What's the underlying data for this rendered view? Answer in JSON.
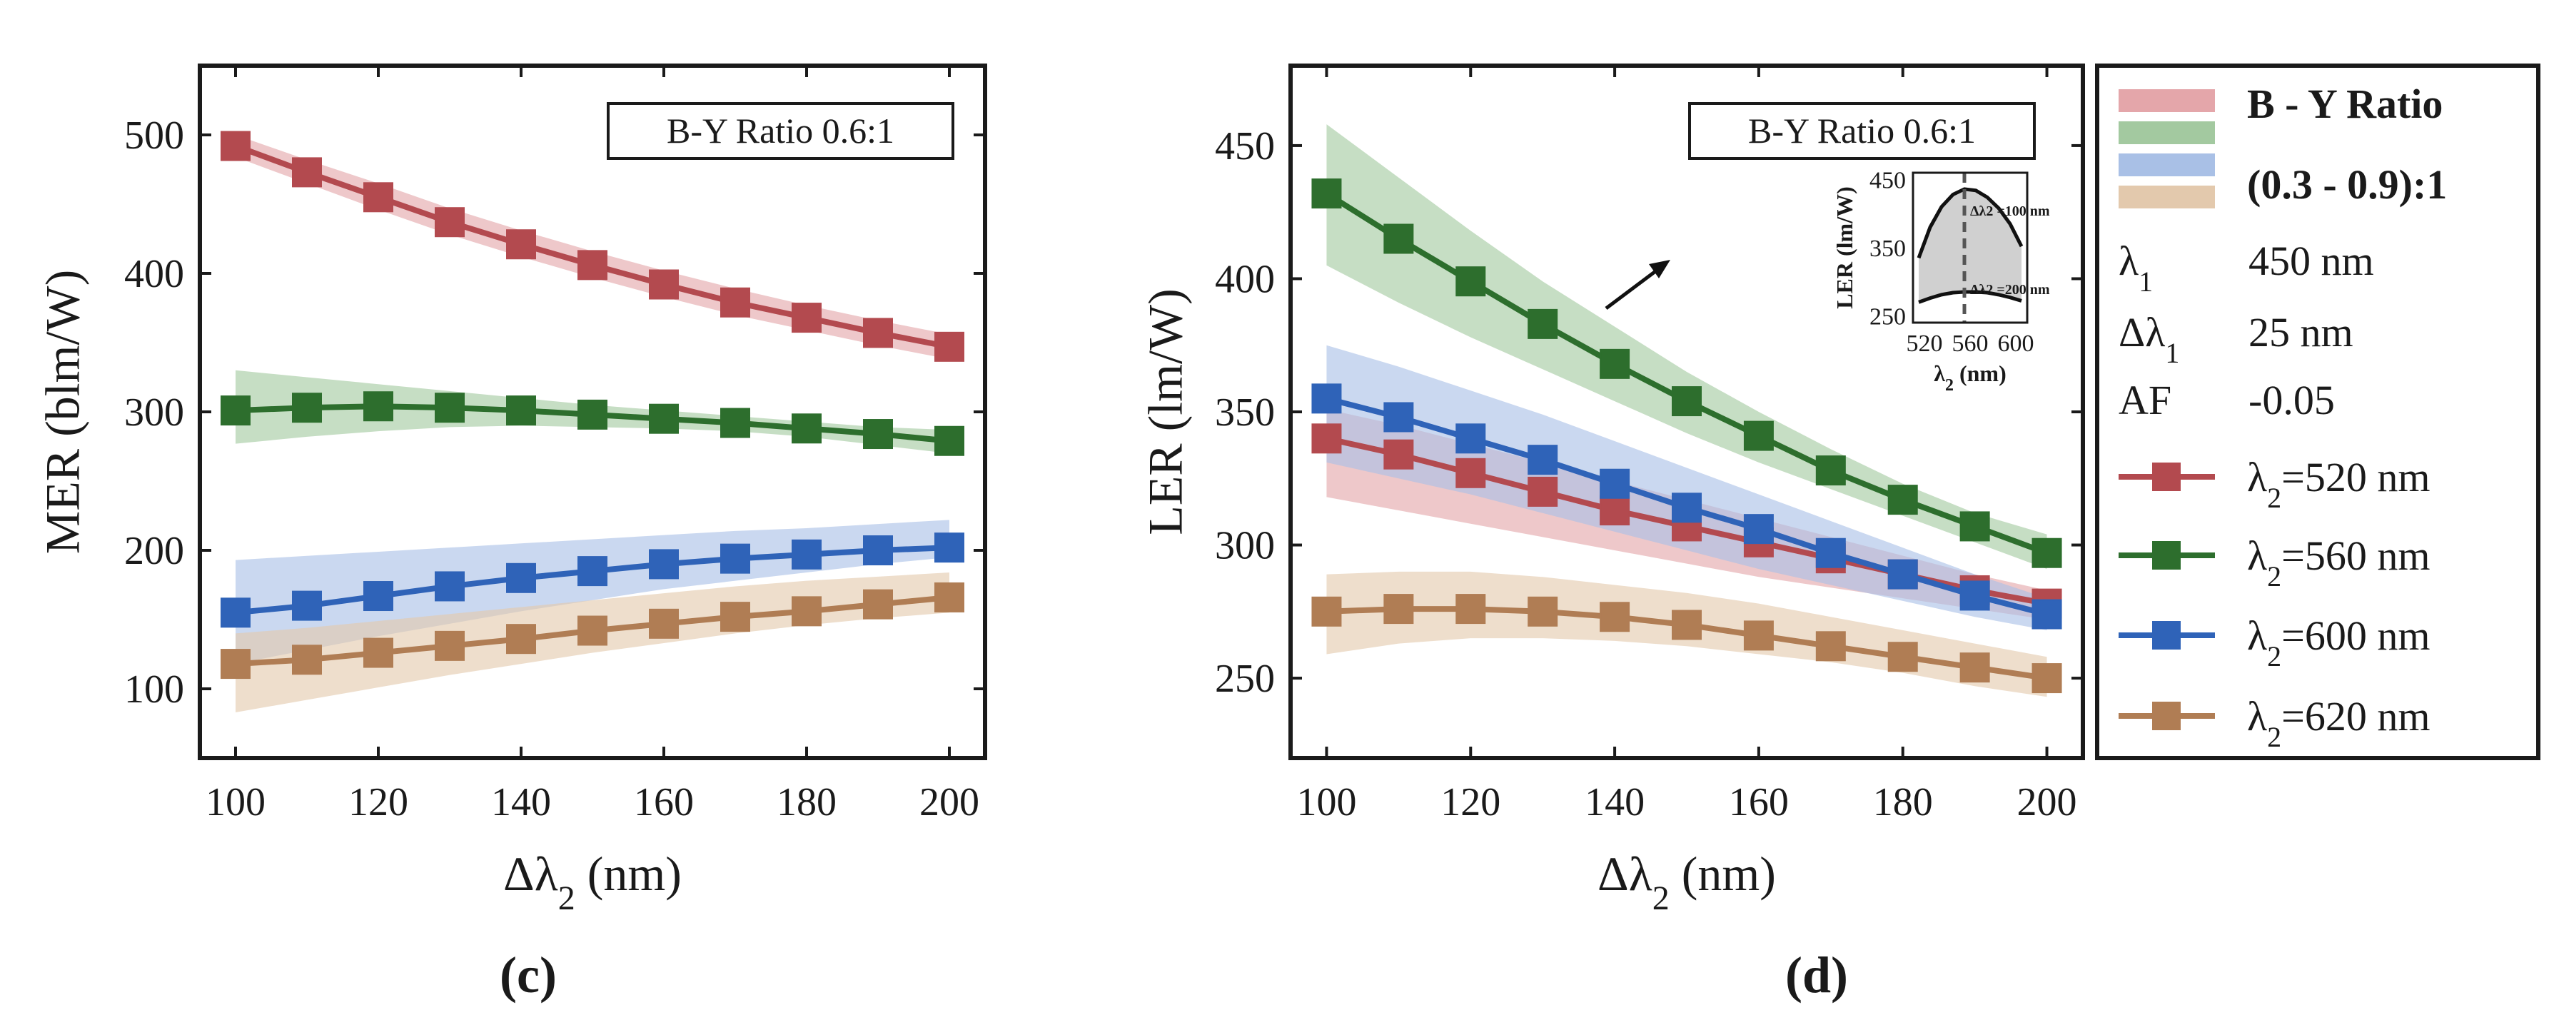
{
  "chart_data": [
    {
      "type": "line",
      "panel_label": "(c)",
      "ylabel": "MER (blm/W)",
      "xlabel_main": "Δλ",
      "xlabel_sub": "2",
      "xlabel_unit": "(nm)",
      "xlim": [
        95,
        205
      ],
      "ylim": [
        50,
        550
      ],
      "xticks": [
        100,
        120,
        140,
        160,
        180,
        200
      ],
      "yticks": [
        100,
        200,
        300,
        400,
        500
      ],
      "annotation": "B-Y Ratio  0.6:1",
      "x": [
        100,
        110,
        120,
        130,
        140,
        150,
        160,
        170,
        180,
        190,
        200
      ],
      "series": [
        {
          "name": "λ2=520 nm",
          "color": "#b34a4f",
          "band_color": "#e4a6aa",
          "values": [
            492,
            473,
            455,
            437,
            421,
            406,
            392,
            379,
            368,
            357,
            347
          ],
          "band_upper": [
            500,
            482,
            465,
            447,
            431,
            416,
            402,
            389,
            377,
            366,
            356
          ],
          "band_lower": [
            484,
            465,
            446,
            428,
            412,
            397,
            383,
            370,
            359,
            348,
            338
          ]
        },
        {
          "name": "λ2=560 nm",
          "color": "#2d6e2d",
          "band_color": "#a3c9a0",
          "values": [
            301,
            303,
            304,
            303,
            301,
            298,
            295,
            292,
            288,
            284,
            279
          ],
          "band_upper": [
            330,
            325,
            320,
            315,
            310,
            305,
            301,
            297,
            293,
            289,
            287
          ],
          "band_lower": [
            277,
            282,
            286,
            289,
            290,
            289,
            288,
            286,
            282,
            276,
            270
          ]
        },
        {
          "name": "λ2=600 nm",
          "color": "#2f63b8",
          "band_color": "#a9c0e6",
          "values": [
            155,
            160,
            167,
            174,
            180,
            185,
            190,
            194,
            197,
            200,
            202
          ],
          "band_upper": [
            193,
            196,
            199,
            202,
            205,
            208,
            211,
            214,
            216,
            219,
            222
          ],
          "band_lower": [
            118,
            128,
            138,
            147,
            156,
            164,
            172,
            178,
            184,
            190,
            195
          ]
        },
        {
          "name": "λ2=620 nm",
          "color": "#b07d54",
          "band_color": "#e3c9ad",
          "values": [
            118,
            121,
            126,
            131,
            136,
            142,
            147,
            152,
            156,
            161,
            166
          ],
          "band_upper": [
            140,
            144,
            149,
            154,
            159,
            164,
            169,
            174,
            178,
            181,
            184
          ],
          "band_lower": [
            83,
            92,
            101,
            110,
            118,
            126,
            133,
            140,
            146,
            151,
            155
          ]
        }
      ]
    },
    {
      "type": "line",
      "panel_label": "(d)",
      "ylabel": "LER (lm/W)",
      "xlabel_main": "Δλ",
      "xlabel_sub": "2",
      "xlabel_unit": "(nm)",
      "xlim": [
        95,
        205
      ],
      "ylim": [
        220,
        480
      ],
      "xticks": [
        100,
        120,
        140,
        160,
        180,
        200
      ],
      "yticks": [
        250,
        300,
        350,
        400,
        450
      ],
      "annotation": "B-Y Ratio  0.6:1",
      "x": [
        100,
        110,
        120,
        130,
        140,
        150,
        160,
        170,
        180,
        190,
        200
      ],
      "series": [
        {
          "name": "λ2=520 nm",
          "color": "#b34a4f",
          "band_color": "#e4a6aa",
          "values": [
            340,
            334,
            327,
            320,
            313,
            307,
            301,
            295,
            289,
            283,
            278
          ],
          "band_upper": [
            351,
            345,
            338,
            331,
            324,
            317,
            310,
            303,
            296,
            289,
            283
          ],
          "band_lower": [
            318,
            313,
            308,
            303,
            298,
            293,
            288,
            284,
            280,
            276,
            272
          ]
        },
        {
          "name": "λ2=560 nm",
          "color": "#2d6e2d",
          "band_color": "#a3c9a0",
          "values": [
            432,
            415,
            399,
            383,
            368,
            354,
            341,
            328,
            317,
            307,
            297
          ],
          "band_upper": [
            458,
            438,
            418,
            399,
            382,
            365,
            350,
            336,
            323,
            312,
            304
          ],
          "band_lower": [
            405,
            391,
            378,
            366,
            354,
            342,
            331,
            321,
            311,
            301,
            291
          ]
        },
        {
          "name": "λ2=600 nm",
          "color": "#2f63b8",
          "band_color": "#a9c0e6",
          "values": [
            355,
            348,
            340,
            332,
            323,
            314,
            306,
            297,
            289,
            281,
            274
          ],
          "band_upper": [
            375,
            367,
            358,
            349,
            339,
            329,
            319,
            309,
            299,
            289,
            280
          ],
          "band_lower": [
            331,
            325,
            319,
            312,
            305,
            298,
            291,
            285,
            279,
            273,
            268
          ]
        },
        {
          "name": "λ2=620 nm",
          "color": "#b07d54",
          "band_color": "#e3c9ad",
          "values": [
            275,
            276,
            276,
            275,
            273,
            270,
            266,
            262,
            258,
            254,
            250
          ],
          "band_upper": [
            289,
            290,
            290,
            288,
            285,
            282,
            278,
            273,
            268,
            263,
            258
          ],
          "band_lower": [
            259,
            263,
            265,
            265,
            264,
            262,
            259,
            256,
            252,
            247,
            243
          ]
        }
      ],
      "inset": {
        "xlabel_main": "λ",
        "xlabel_sub": "2",
        "xlabel_unit": "(nm)",
        "ylabel": "LER (lm/W)",
        "xlim": [
          510,
          610
        ],
        "ylim": [
          240,
          460
        ],
        "xticks": [
          520,
          560,
          600
        ],
        "yticks": [
          250,
          350,
          450
        ],
        "marker_x": 555,
        "anno_upper": "Δλ2 =100 nm",
        "anno_lower": "Δλ2 =200 nm",
        "x": [
          515,
          525,
          535,
          545,
          555,
          565,
          575,
          585,
          595,
          605
        ],
        "upper": [
          335,
          380,
          410,
          428,
          436,
          434,
          424,
          408,
          385,
          352
        ],
        "lower": [
          270,
          276,
          281,
          284,
          285,
          285,
          284,
          281,
          277,
          272
        ]
      }
    }
  ],
  "legend": {
    "band_title_line1": "B - Y Ratio",
    "band_title_line2": "(0.3 - 0.9):1",
    "band_colors": [
      "#e4a6aa",
      "#a3c9a0",
      "#a9c0e6",
      "#e3c9ad"
    ],
    "params": [
      {
        "key": "λ1",
        "value": "450 nm"
      },
      {
        "key": "Δλ1",
        "value": "25 nm"
      },
      {
        "key": "AF",
        "value": "-0.05"
      }
    ],
    "series": [
      {
        "label": "λ2=520 nm",
        "color": "#b34a4f"
      },
      {
        "label": "λ2=560 nm",
        "color": "#2d6e2d"
      },
      {
        "label": "λ2=600 nm",
        "color": "#2f63b8"
      },
      {
        "label": "λ2=620 nm",
        "color": "#b07d54"
      }
    ]
  }
}
